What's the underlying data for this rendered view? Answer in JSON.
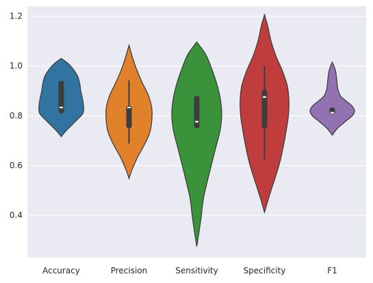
{
  "chart_data": {
    "type": "violin",
    "categories": [
      "Accuracy",
      "Precision",
      "Sensitivity",
      "Specificity",
      "F1"
    ],
    "ylim": [
      0.23,
      1.24
    ],
    "yticks": [
      0.4,
      0.6,
      0.8,
      1.0,
      1.2
    ],
    "ytick_labels": [
      "0.4",
      "0.6",
      "0.8",
      "1.0",
      "1.2"
    ],
    "grid": true,
    "xlabel": "",
    "ylabel": "",
    "title": "",
    "series": [
      {
        "category": "Accuracy",
        "color": "#3274a1",
        "min": 0.716,
        "max": 1.03,
        "q1": 0.81,
        "median": 0.833,
        "q3": 0.94,
        "whisker_low": 0.81,
        "whisker_high": 0.94,
        "density": [
          [
            0.716,
            0
          ],
          [
            0.74,
            0.18
          ],
          [
            0.78,
            0.55
          ],
          [
            0.81,
            0.8
          ],
          [
            0.84,
            0.82
          ],
          [
            0.87,
            0.78
          ],
          [
            0.9,
            0.72
          ],
          [
            0.93,
            0.68
          ],
          [
            0.96,
            0.6
          ],
          [
            0.99,
            0.42
          ],
          [
            1.01,
            0.25
          ],
          [
            1.03,
            0
          ]
        ]
      },
      {
        "category": "Precision",
        "color": "#e1812c",
        "min": 0.548,
        "max": 1.083,
        "q1": 0.75,
        "median": 0.833,
        "q3": 0.84,
        "whisker_low": 0.688,
        "whisker_high": 0.942,
        "density": [
          [
            0.548,
            0
          ],
          [
            0.58,
            0.1
          ],
          [
            0.63,
            0.3
          ],
          [
            0.68,
            0.55
          ],
          [
            0.73,
            0.76
          ],
          [
            0.78,
            0.84
          ],
          [
            0.83,
            0.84
          ],
          [
            0.88,
            0.72
          ],
          [
            0.93,
            0.5
          ],
          [
            0.98,
            0.3
          ],
          [
            1.03,
            0.14
          ],
          [
            1.06,
            0.06
          ],
          [
            1.083,
            0
          ]
        ]
      },
      {
        "category": "Sensitivity",
        "color": "#3a923a",
        "min": 0.275,
        "max": 1.096,
        "q1": 0.75,
        "median": 0.776,
        "q3": 0.88,
        "whisker_low": 0.75,
        "whisker_high": 0.88,
        "density": [
          [
            0.275,
            0
          ],
          [
            0.33,
            0.08
          ],
          [
            0.4,
            0.17
          ],
          [
            0.47,
            0.25
          ],
          [
            0.55,
            0.42
          ],
          [
            0.62,
            0.58
          ],
          [
            0.68,
            0.72
          ],
          [
            0.74,
            0.86
          ],
          [
            0.8,
            0.92
          ],
          [
            0.86,
            0.88
          ],
          [
            0.92,
            0.76
          ],
          [
            0.98,
            0.58
          ],
          [
            1.04,
            0.36
          ],
          [
            1.07,
            0.18
          ],
          [
            1.096,
            0
          ]
        ]
      },
      {
        "category": "Specificity",
        "color": "#c03d3e",
        "min": 0.412,
        "max": 1.208,
        "q1": 0.75,
        "median": 0.875,
        "q3": 0.905,
        "whisker_low": 0.625,
        "whisker_high": 1.0,
        "density": [
          [
            0.412,
            0
          ],
          [
            0.45,
            0.1
          ],
          [
            0.5,
            0.24
          ],
          [
            0.56,
            0.42
          ],
          [
            0.62,
            0.58
          ],
          [
            0.68,
            0.7
          ],
          [
            0.74,
            0.8
          ],
          [
            0.8,
            0.88
          ],
          [
            0.86,
            0.9
          ],
          [
            0.92,
            0.84
          ],
          [
            0.98,
            0.66
          ],
          [
            1.04,
            0.42
          ],
          [
            1.1,
            0.24
          ],
          [
            1.16,
            0.12
          ],
          [
            1.19,
            0.04
          ],
          [
            1.208,
            0
          ]
        ]
      },
      {
        "category": "F1",
        "color": "#9372b2",
        "min": 0.722,
        "max": 1.015,
        "q1": 0.807,
        "median": 0.812,
        "q3": 0.833,
        "whisker_low": 0.807,
        "whisker_high": 0.833,
        "density": [
          [
            0.722,
            0
          ],
          [
            0.75,
            0.2
          ],
          [
            0.78,
            0.52
          ],
          [
            0.8,
            0.74
          ],
          [
            0.82,
            0.82
          ],
          [
            0.84,
            0.72
          ],
          [
            0.86,
            0.5
          ],
          [
            0.88,
            0.3
          ],
          [
            0.91,
            0.2
          ],
          [
            0.95,
            0.16
          ],
          [
            0.98,
            0.12
          ],
          [
            1.0,
            0.06
          ],
          [
            1.015,
            0
          ]
        ]
      }
    ]
  }
}
